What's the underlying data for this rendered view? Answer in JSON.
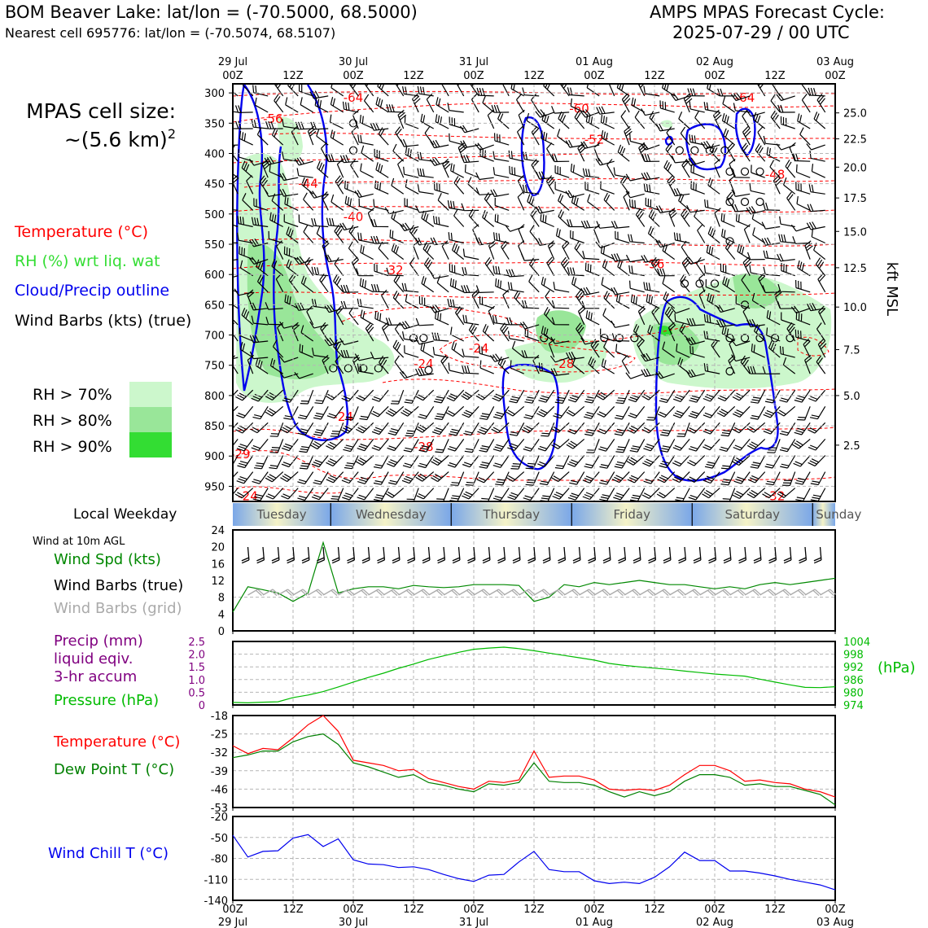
{
  "header": {
    "station_line": "BOM Beaver Lake: lat/lon = (-70.5000, 68.5000)",
    "cell_line": "Nearest cell 695776: lat/lon = (-70.5074, 68.5107)",
    "cycle_title": "AMPS MPAS Forecast Cycle:",
    "cycle_value": "2025-07-29 / 00 UTC"
  },
  "legend": {
    "cell_size_label": "MPAS cell size:",
    "cell_size_value": "~(5.6 km)",
    "cell_size_sup": "2",
    "temperature": "Temperature (°C)",
    "rh": "RH (%) wrt liq. wat",
    "cloud": "Cloud/Precip outline",
    "wind": "Wind Barbs (kts) (true)",
    "rh_70": "RH > 70%",
    "rh_80": "RH > 80%",
    "rh_90": "RH > 90%"
  },
  "colors": {
    "temperature": "#ff0000",
    "rh_label": "#33dd33",
    "cloud": "#0000ee",
    "rh_70": "#ccf7cc",
    "rh_80": "#99e699",
    "rh_90": "#33dd33",
    "wind_speed": "#008800",
    "precip": "#800080",
    "pressure": "#00bb00",
    "dew_point": "#008000",
    "wind_chill": "#0000ee",
    "grid_barbs": "#aaaaaa",
    "weekday_blue": "#7aa7e8",
    "weekday_yellow": "#f5f3c8"
  },
  "time_axis": {
    "top_dates": [
      "29 Jul",
      "30 Jul",
      "31 Jul",
      "01 Aug",
      "02 Aug",
      "03 Aug"
    ],
    "tick_labels": [
      "00Z",
      "12Z",
      "00Z",
      "12Z",
      "00Z",
      "12Z",
      "00Z",
      "12Z",
      "00Z",
      "12Z",
      "00Z"
    ],
    "hours": [
      0,
      12,
      24,
      36,
      48,
      60,
      72,
      84,
      96,
      108,
      120
    ]
  },
  "weekday_strip": {
    "label": "Local Weekday",
    "days": [
      "Tuesday",
      "Wednesday",
      "Thursday",
      "Friday",
      "Saturday",
      "Sunday"
    ]
  },
  "panel_labels": {
    "wind_agl": "Wind at 10m AGL",
    "wind_speed": "Wind Spd (kts)",
    "wind_barbs_true": "Wind Barbs (true)",
    "wind_barbs_grid": "Wind Barbs (grid)",
    "precip_1": "Precip (mm)",
    "precip_2": "liquid eqiv.",
    "precip_3": "3-hr accum",
    "pressure": "Pressure (hPa)",
    "pressure_unit": "(hPa)",
    "temperature": "Temperature (°C)",
    "dew_point": "Dew Point T (°C)",
    "wind_chill": "Wind Chill T (°C)",
    "kft_msl": "kft MSL"
  },
  "chart_data": [
    {
      "type": "heatmap",
      "name": "vertical-cross-section",
      "yaxis_pressure_hpa": [
        300,
        350,
        400,
        450,
        500,
        550,
        600,
        650,
        700,
        750,
        800,
        850,
        900,
        950
      ],
      "yaxis_height_kft": [
        25.0,
        22.5,
        20.0,
        17.5,
        15.0,
        12.5,
        10.0,
        7.5,
        5.0,
        2.5
      ],
      "ylim_hpa": [
        285,
        975
      ],
      "xlim_hours": [
        0,
        120
      ],
      "temperature_contour_labels": [
        {
          "text": "-64",
          "t": 24,
          "p": 308
        },
        {
          "text": "-60",
          "t": 69,
          "p": 326
        },
        {
          "text": "-64",
          "t": 102,
          "p": 308
        },
        {
          "text": "-56",
          "t": 8,
          "p": 343
        },
        {
          "text": "-52",
          "t": 72,
          "p": 377
        },
        {
          "text": "-48",
          "t": 108,
          "p": 435
        },
        {
          "text": "-44",
          "t": 15,
          "p": 450
        },
        {
          "text": "-40",
          "t": 24,
          "p": 505
        },
        {
          "text": "-36",
          "t": 84,
          "p": 583
        },
        {
          "text": "-32",
          "t": 32,
          "p": 593
        },
        {
          "text": "-24",
          "t": 49,
          "p": 722
        },
        {
          "text": "-24",
          "t": 38,
          "p": 748
        },
        {
          "text": "-28",
          "t": 66,
          "p": 748
        },
        {
          "text": "-24",
          "t": 22,
          "p": 835
        },
        {
          "text": "-28",
          "t": 38,
          "p": 885
        },
        {
          "text": "-29",
          "t": 1.5,
          "p": 897
        },
        {
          "text": "-24",
          "t": 3,
          "p": 966
        },
        {
          "text": "-32",
          "t": 108,
          "p": 966
        }
      ]
    },
    {
      "type": "line",
      "name": "wind-speed-10m",
      "ylabel": "Wind Spd (kts)",
      "ylim": [
        0,
        24
      ],
      "yticks": [
        0,
        4,
        8,
        12,
        16,
        20,
        24
      ],
      "x_hours": [
        0,
        3,
        6,
        9,
        12,
        15,
        18,
        21,
        24,
        27,
        30,
        33,
        36,
        39,
        42,
        45,
        48,
        51,
        54,
        57,
        60,
        63,
        66,
        69,
        72,
        75,
        78,
        81,
        84,
        87,
        90,
        93,
        96,
        99,
        102,
        105,
        108,
        111,
        114,
        117,
        120
      ],
      "values": [
        4.5,
        10.5,
        9.8,
        9,
        7,
        9,
        21,
        9,
        10,
        10.5,
        10.5,
        10,
        10.8,
        10.5,
        10.3,
        10.5,
        11,
        11,
        11,
        10.8,
        7,
        8,
        11,
        10.5,
        11.5,
        11,
        11.5,
        12,
        11.5,
        11,
        11,
        10.5,
        10,
        10.5,
        10,
        11,
        11.5,
        11,
        11.5,
        12,
        12.5
      ]
    },
    {
      "type": "line",
      "name": "precip-pressure",
      "series": [
        {
          "name": "Pressure (hPa)",
          "ylim": [
            974,
            1004
          ],
          "yticks": [
            974,
            980,
            986,
            992,
            998,
            1004
          ],
          "x_hours": [
            0,
            3,
            6,
            9,
            12,
            15,
            18,
            21,
            24,
            27,
            30,
            33,
            36,
            39,
            42,
            45,
            48,
            51,
            54,
            57,
            60,
            63,
            66,
            69,
            72,
            75,
            78,
            81,
            84,
            87,
            90,
            93,
            96,
            99,
            102,
            105,
            108,
            111,
            114,
            117,
            120
          ],
          "values": [
            975.2,
            975,
            975.3,
            975.5,
            977.5,
            978.7,
            980.3,
            982.5,
            984.8,
            987,
            989,
            991.3,
            993.3,
            995.5,
            997.2,
            998.9,
            1000.3,
            1000.9,
            1001.3,
            1000.6,
            999.6,
            998.5,
            997.4,
            996.3,
            995.2,
            993.6,
            992.7,
            992,
            991.4,
            990.8,
            990,
            989.3,
            988.6,
            988.1,
            987.6,
            986.2,
            984.8,
            983.5,
            982.3,
            982.2,
            982.6
          ]
        },
        {
          "name": "Precip (mm)",
          "ylim": [
            0,
            2.5
          ],
          "yticks": [
            0,
            0.5,
            1.0,
            1.5,
            2.0,
            2.5
          ],
          "values": []
        }
      ]
    },
    {
      "type": "line",
      "name": "temperature-dewpoint",
      "ylim": [
        -53,
        -18
      ],
      "yticks": [
        -53,
        -46,
        -39,
        -32,
        -25,
        -18
      ],
      "x_hours": [
        0,
        3,
        6,
        9,
        12,
        15,
        18,
        21,
        24,
        27,
        30,
        33,
        36,
        39,
        42,
        45,
        48,
        51,
        54,
        57,
        60,
        63,
        66,
        69,
        72,
        75,
        78,
        81,
        84,
        87,
        90,
        93,
        96,
        99,
        102,
        105,
        108,
        111,
        114,
        117,
        120
      ],
      "series": [
        {
          "name": "Temperature (°C)",
          "values": [
            -29.5,
            -32.5,
            -30.5,
            -31,
            -26.5,
            -21.5,
            -18,
            -24,
            -35,
            -36,
            -37,
            -39,
            -38.5,
            -42,
            -43.5,
            -45,
            -46,
            -43,
            -43.5,
            -42.5,
            -31.5,
            -41.5,
            -41,
            -41,
            -42.5,
            -46,
            -46.5,
            -46,
            -46.5,
            -44.5,
            -40.5,
            -37,
            -37,
            -39,
            -43,
            -42.5,
            -43.5,
            -44,
            -46,
            -47,
            -49
          ]
        },
        {
          "name": "Dew Point T (°C)",
          "values": [
            -34,
            -33,
            -31.5,
            -31.5,
            -28,
            -26,
            -25,
            -29,
            -36,
            -37.5,
            -39.5,
            -41.5,
            -40.5,
            -43.5,
            -44.5,
            -46,
            -47,
            -44,
            -44.5,
            -43.5,
            -36,
            -43,
            -43.5,
            -43.5,
            -44.5,
            -47,
            -49,
            -47,
            -48.5,
            -47,
            -43,
            -40.5,
            -40.5,
            -41.5,
            -44.5,
            -44,
            -45,
            -45,
            -46.5,
            -48,
            -52
          ]
        }
      ]
    },
    {
      "type": "line",
      "name": "wind-chill",
      "ylim": [
        -140,
        -20
      ],
      "yticks": [
        -140,
        -110,
        -80,
        -50,
        -20
      ],
      "x_hours": [
        0,
        3,
        6,
        9,
        12,
        15,
        18,
        21,
        24,
        27,
        30,
        33,
        36,
        39,
        42,
        45,
        48,
        51,
        54,
        57,
        60,
        63,
        66,
        69,
        72,
        75,
        78,
        81,
        84,
        87,
        90,
        93,
        96,
        99,
        102,
        105,
        108,
        111,
        114,
        117,
        120
      ],
      "series": [
        {
          "name": "Wind Chill T (°C)",
          "values": [
            -47,
            -78,
            -70,
            -69,
            -51,
            -46,
            -63,
            -52,
            -82,
            -88,
            -89,
            -93,
            -92,
            -96,
            -103,
            -109,
            -113,
            -104,
            -103,
            -85,
            -70,
            -96,
            -99,
            -99,
            -112,
            -116,
            -114,
            -116,
            -107,
            -92,
            -71,
            -83,
            -83,
            -98,
            -98,
            -101,
            -105,
            -110,
            -114,
            -118,
            -125
          ]
        }
      ]
    }
  ]
}
